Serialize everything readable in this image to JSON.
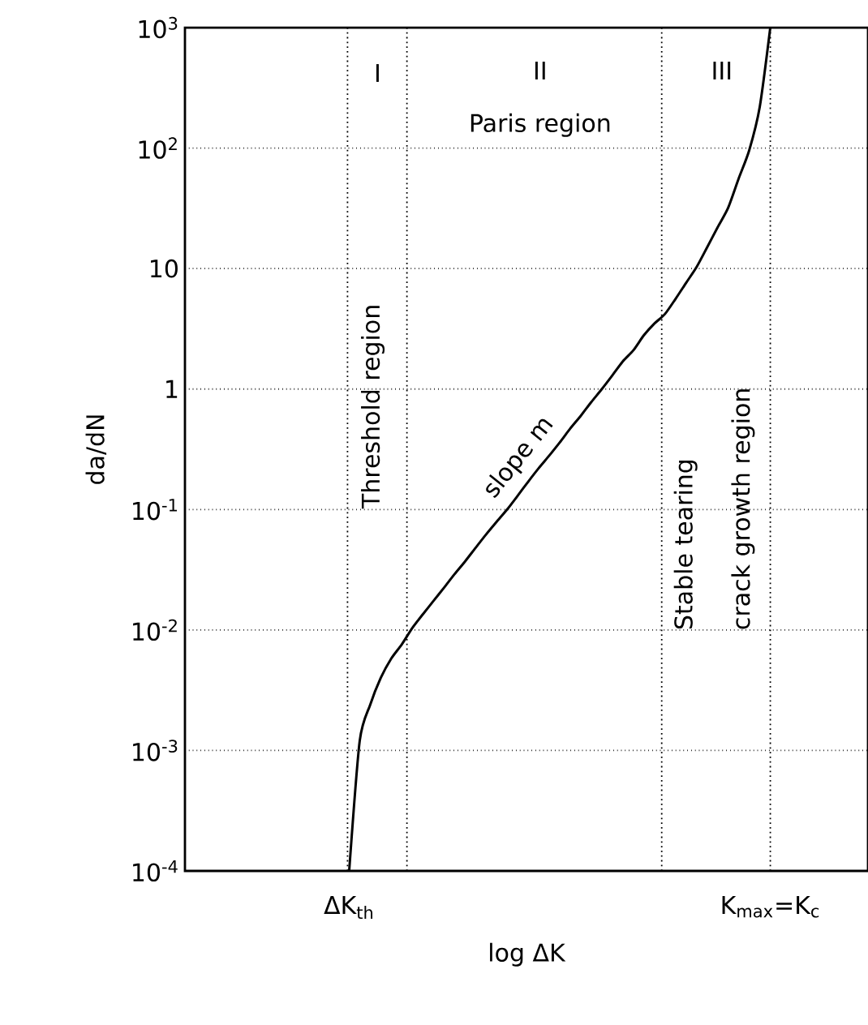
{
  "chart_data": {
    "type": "line",
    "xlabel": "log  ΔK",
    "ylabel": "da/dN",
    "categories": [
      "ΔK$_{th}$",
      null,
      null,
      null,
      null,
      null,
      null,
      null,
      null,
      null,
      null,
      null,
      null,
      null,
      null,
      null,
      null,
      null,
      null,
      null,
      null,
      null,
      null,
      null,
      null,
      null,
      null,
      null,
      null,
      null,
      null,
      null,
      null,
      null,
      null,
      null,
      null,
      null,
      null,
      null,
      "K$_{max}$=K$_{c}$"
    ],
    "series": [
      {
        "color": "#000000",
        "values": [
          0.0001,
          0.0012,
          0.0024,
          0.004,
          0.0058,
          0.0076,
          0.0104,
          0.0135,
          0.0174,
          0.0224,
          0.029,
          0.037,
          0.048,
          0.062,
          0.079,
          0.1,
          0.13,
          0.17,
          0.22,
          0.28,
          0.36,
          0.47,
          0.6,
          0.78,
          1.0,
          1.3,
          1.7,
          2.1,
          2.8,
          3.5,
          4.2,
          5.6,
          7.6,
          10.3,
          15,
          22,
          32,
          56,
          96,
          220,
          1000
        ]
      }
    ],
    "log": "y",
    "ylim": [
      0.0001,
      1000
    ],
    "yticks": [
      {
        "value": 0.0001,
        "label": "10$^{-4}$"
      },
      {
        "value": 0.001,
        "label": "10$^{-3}$"
      },
      {
        "value": 0.01,
        "label": "10$^{-2}$"
      },
      {
        "value": 0.1,
        "label": "10$^{-1}$"
      },
      1,
      10,
      {
        "value": 100,
        "label": "10$^{2}$"
      },
      {
        "value": 1000,
        "label": "10$^{3}$"
      }
    ],
    "grid": "y",
    "line_style": "solid",
    "marker": "none",
    "annotations": [
      "I",
      "II",
      "III",
      "Paris region",
      "Threshold region",
      "slope m",
      "Stable tearing",
      "crack growth region"
    ]
  }
}
